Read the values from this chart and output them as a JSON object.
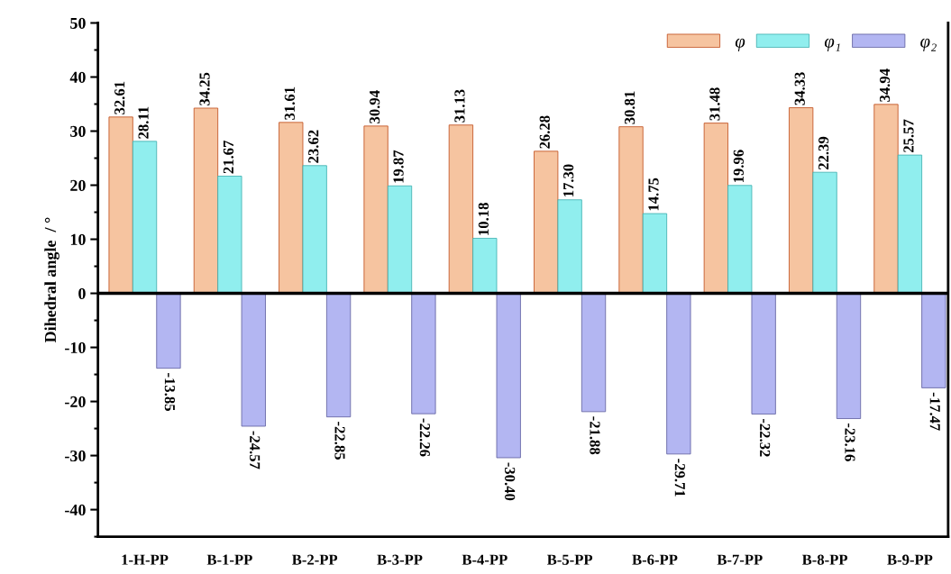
{
  "chart_data": {
    "type": "bar",
    "ylabel": "Dihedral angle  / °",
    "categories": [
      "1-H-PP",
      "B-1-PP",
      "B-2-PP",
      "B-3-PP",
      "B-4-PP",
      "B-5-PP",
      "B-6-PP",
      "B-7-PP",
      "B-8-PP",
      "B-9-PP"
    ],
    "series": [
      {
        "name": "φ",
        "color": "#f6c4a0",
        "values": [
          32.61,
          34.25,
          31.61,
          30.94,
          31.13,
          26.28,
          30.81,
          31.48,
          34.33,
          34.94
        ],
        "value_labels": [
          "32.61",
          "34.25",
          "31.61",
          "30.94",
          "31.13",
          "26.28",
          "30.81",
          "31.48",
          "34.33",
          "34.94"
        ]
      },
      {
        "name": "φ₁",
        "color": "#90eeee",
        "values": [
          28.11,
          21.67,
          23.62,
          19.87,
          10.18,
          17.3,
          14.75,
          19.96,
          22.39,
          25.57
        ],
        "value_labels": [
          "28.11",
          "21.67",
          "23.62",
          "19.87",
          "10.18",
          "17.30",
          "14.75",
          "19.96",
          "22.39",
          "25.57"
        ]
      },
      {
        "name": "φ₂",
        "color": "#b3b6f2",
        "values": [
          -13.85,
          -24.57,
          -22.85,
          -22.26,
          -30.4,
          -21.88,
          -29.71,
          -22.32,
          -23.16,
          -17.47
        ],
        "value_labels": [
          "-13.85",
          "-24.57",
          "-22.85",
          "-22.26",
          "-30.40",
          "-21.88",
          "-29.71",
          "-22.32",
          "-23.16",
          "-17.47"
        ]
      }
    ],
    "ylim": [
      -45,
      50
    ],
    "yticks": [
      -40,
      -30,
      -20,
      -10,
      0,
      10,
      20,
      30,
      40,
      50
    ],
    "ref_lines": [
      {
        "axis": "y",
        "value": 0,
        "color": "#000000",
        "line_style": "solid"
      }
    ],
    "legend": "top right",
    "grid": false
  }
}
